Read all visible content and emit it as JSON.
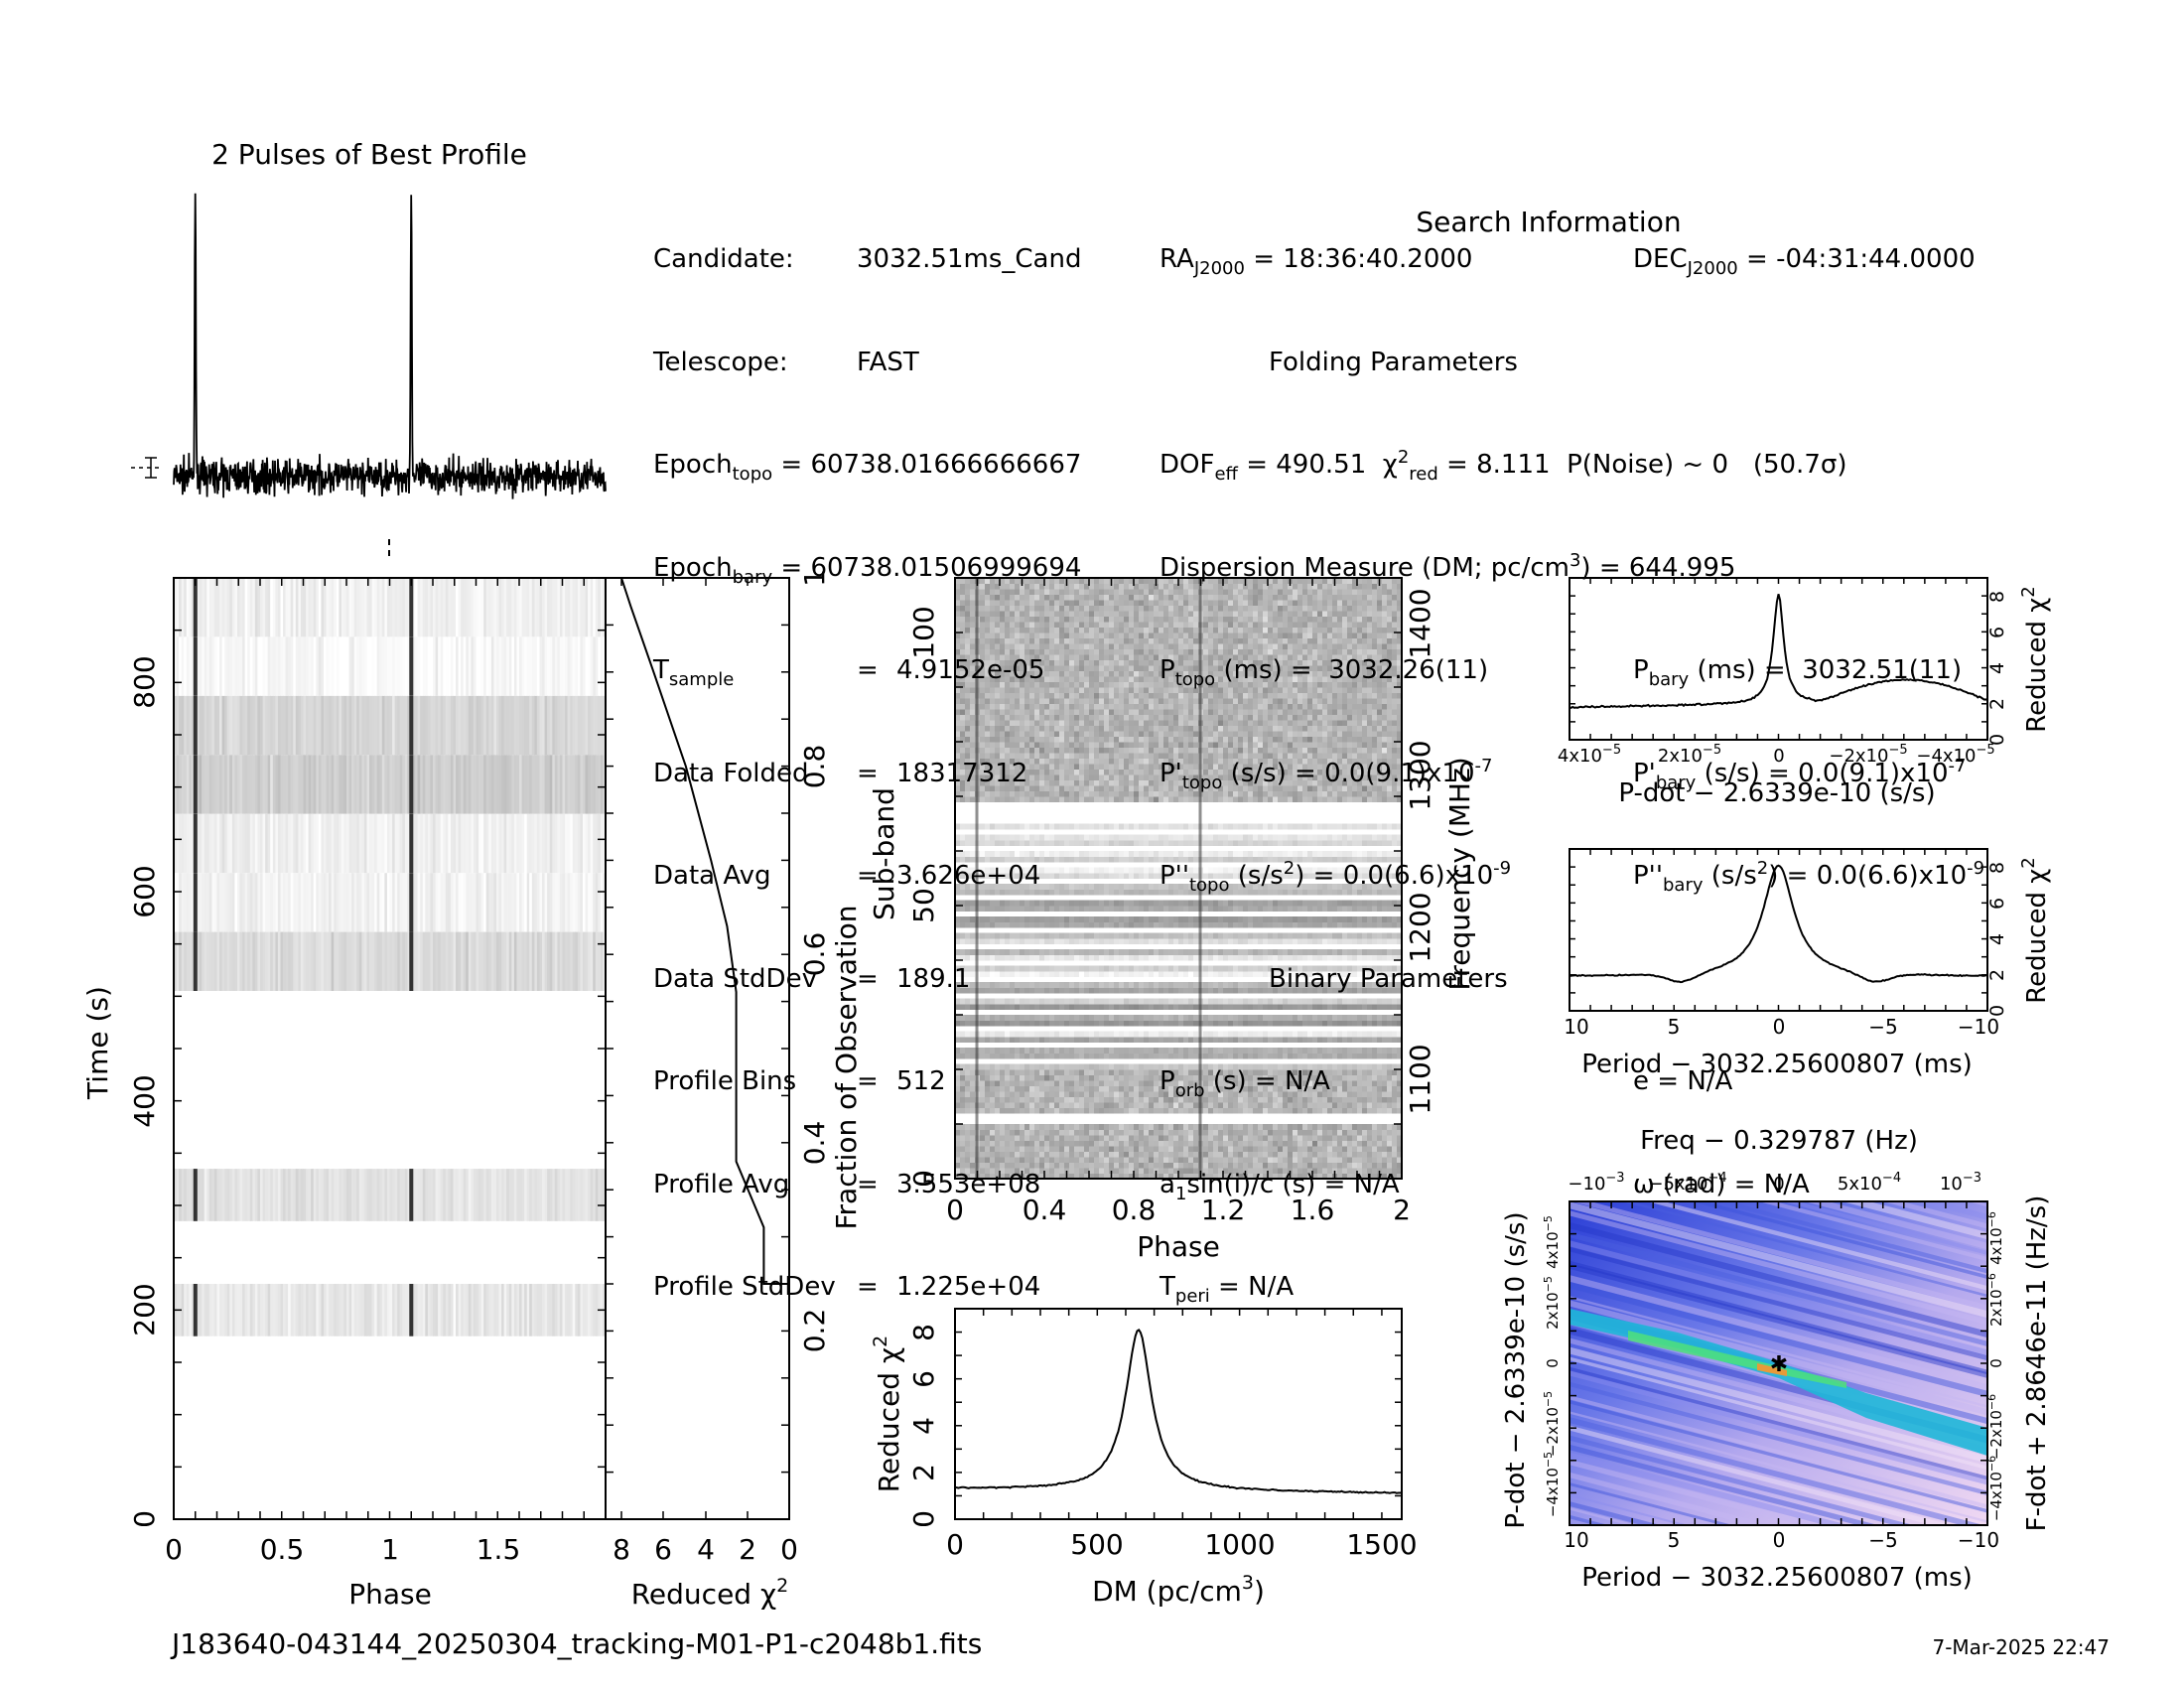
{
  "candidate_file": "J183640-043144_20250304_tracking-M01-P1-c2048b1.fits",
  "date": "7-Mar-2025 22:47",
  "profile": {
    "title": "2 Pulses of Best Profile",
    "peaks": [
      0.1,
      1.1
    ]
  },
  "info": {
    "title": "Search Information",
    "candidate": "3032.51ms_Cand",
    "telescope": "FAST",
    "epoch_topo": "60738.01666666667",
    "epoch_bary": "60738.01506999694",
    "t_sample": "4.9152e-05",
    "data_folded": "18317312",
    "data_avg": "3.626e+04",
    "data_stddev": "189.1",
    "profile_bins": "512",
    "profile_avg": "3.553e+08",
    "profile_stddev": "1.225e+04",
    "ra": "18:36:40.2000",
    "dec": "-04:31:44.0000",
    "folding_title": "Folding Parameters",
    "dof_eff": "490.51",
    "chi2_red": "8.111",
    "p_noise": "0",
    "sigma": "(50.7σ)",
    "dm": "644.995",
    "p_topo": "3032.26(11)",
    "p_bary": "3032.51(11)",
    "pd_topo": "0.0(9.1)x10",
    "pd_exp": "-7",
    "pdd_topo": "0.0(6.6)x10",
    "pdd_exp": "-9",
    "binary_title": "Binary Parameters",
    "p_orb": "N/A",
    "a1": "N/A",
    "t_peri": "N/A",
    "ecc": "N/A",
    "omega": "N/A"
  },
  "chart_data": [
    {
      "id": "time_phase",
      "type": "heatmap",
      "xlabel": "Phase",
      "ylabel": "Time (s)",
      "xlim": [
        0,
        2
      ],
      "ylim": [
        0,
        900
      ],
      "xticks": [
        "0",
        "0.5",
        "1",
        "1.5"
      ],
      "yticks": [
        "0",
        "200",
        "400",
        "600",
        "800"
      ],
      "data_segments_s": [
        [
          175,
          225
        ],
        [
          285,
          335
        ],
        [
          505,
          900
        ]
      ],
      "pulse_phases": [
        0.1,
        1.1
      ]
    },
    {
      "id": "chi2_vs_time",
      "type": "line",
      "xlabel": "Reduced χ2",
      "ylabel": "Fraction of Observation",
      "xlim": [
        8,
        0
      ],
      "ylim": [
        0,
        1
      ],
      "xticks": [
        "8",
        "6",
        "4",
        "2",
        "0"
      ],
      "yticks": [
        "0.2",
        "0.4",
        "0.6",
        "0.8",
        "1"
      ],
      "points": [
        [
          0,
          0.25
        ],
        [
          1.8,
          0.25
        ],
        [
          1.8,
          0.31
        ],
        [
          3.0,
          0.38
        ],
        [
          3.0,
          0.56
        ],
        [
          3.4,
          0.63
        ],
        [
          4.1,
          0.7
        ],
        [
          5.2,
          0.8
        ],
        [
          6.6,
          0.9
        ],
        [
          7.6,
          0.97
        ],
        [
          8.0,
          1.0
        ]
      ]
    },
    {
      "id": "subband_phase",
      "type": "heatmap",
      "xlabel": "Phase",
      "ylabel": "Sub-band",
      "ylabel_right": "Frequency (MHz)",
      "xlim": [
        0,
        2
      ],
      "ylim": [
        0,
        110
      ],
      "xticks": [
        "0",
        "0.4",
        "0.8",
        "1.2",
        "1.6",
        "2"
      ],
      "yticks": [
        "0",
        "50",
        "100"
      ],
      "yticks_right": [
        "1100",
        "1200",
        "1300",
        "1400"
      ]
    },
    {
      "id": "dm_curve",
      "type": "line",
      "xlabel": "DM (pc/cm3)",
      "ylabel": "Reduced χ2",
      "xlim": [
        0,
        1570
      ],
      "ylim": [
        0,
        9
      ],
      "xticks": [
        "0",
        "500",
        "1000",
        "1500"
      ],
      "yticks": [
        "0",
        "2",
        "4",
        "6",
        "8"
      ],
      "peak_dm": 645,
      "peak_value": 8.1,
      "baseline_left": 1.3,
      "baseline_right": 1.1
    },
    {
      "id": "pdot_curve",
      "type": "line",
      "xlabel": "P-dot − 2.6339e-10 (s/s)",
      "ylabel": "Reduced χ2",
      "xlim": [
        5e-05,
        -5e-05
      ],
      "ylim": [
        0,
        9
      ],
      "xticks": [
        "4x10-5",
        "2x10-5",
        "0",
        "-2x10-5",
        "-4x10-5"
      ],
      "yticks": [
        "0",
        "2",
        "4",
        "6",
        "8"
      ],
      "peak_value": 8.1,
      "baseline": 1.8
    },
    {
      "id": "period_curve",
      "type": "line",
      "xlabel": "Period − 3032.25600807 (ms)",
      "ylabel": "Reduced χ2",
      "xlim": [
        10,
        -10
      ],
      "ylim": [
        0,
        9
      ],
      "xticks": [
        "10",
        "5",
        "0",
        "-5",
        "-10"
      ],
      "yticks": [
        "0",
        "2",
        "4",
        "6",
        "8"
      ],
      "peak_value": 8.1,
      "baseline": 1.9
    },
    {
      "id": "p_pdot_plane",
      "type": "heatmap",
      "title": "Freq − 0.329787 (Hz)",
      "xlabel": "Period − 3032.25600807 (ms)",
      "ylabel": "P-dot − 2.6339e-10 (s/s)",
      "ylabel_right": "F-dot + 2.8646e-11 (Hz/s)",
      "xlim": [
        10,
        -10
      ],
      "ylim": [
        -5e-05,
        5e-05
      ],
      "xticks": [
        "10",
        "5",
        "0",
        "-5",
        "-10"
      ],
      "xticks_top": [
        "-10-3",
        "-5x10-4",
        "0",
        "5x10-4",
        "10-3"
      ],
      "yticks": [
        "-4x10-5",
        "-2x10-5",
        "0",
        "2x10-5",
        "4x10-5"
      ],
      "yticks_right": [
        "-4x10-6",
        "-2x10-6",
        "0",
        "2x10-6",
        "4x10-6"
      ],
      "best": [
        0,
        0
      ]
    }
  ]
}
